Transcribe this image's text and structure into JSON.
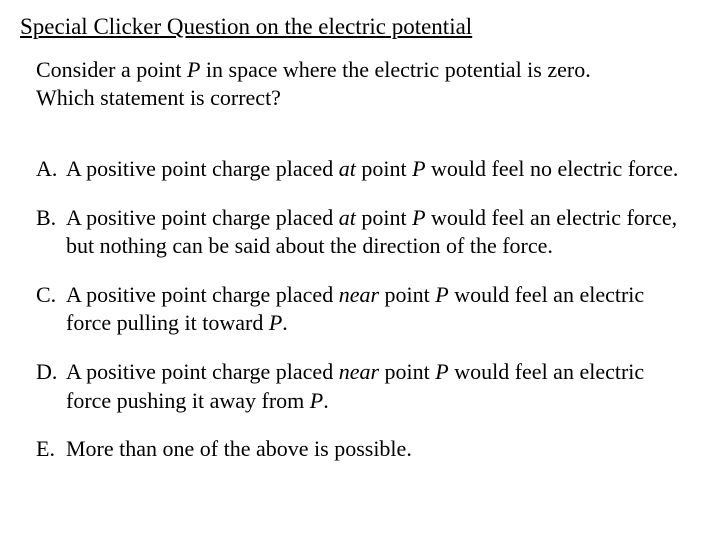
{
  "title": "Special Clicker Question on the electric potential",
  "prompt_l1": "Consider a point ",
  "prompt_P1": "P",
  "prompt_l2": " in space where the electric potential is zero.",
  "prompt_l3": "Which statement is correct?",
  "A_letter": "A.",
  "A_t1": "A positive point charge placed ",
  "A_at": "at",
  "A_t2": " point ",
  "A_P": "P",
  "A_t3": " would feel no electric force.",
  "B_letter": "B.",
  "B_t1": "A positive point charge placed ",
  "B_at": "at",
  "B_t2": " point ",
  "B_P": "P",
  "B_t3": " would feel an electric force, but nothing can be said about the direction of the force.",
  "C_letter": "C.",
  "C_t1": "A positive point charge placed ",
  "C_near": "near",
  "C_t2": " point ",
  "C_P": "P",
  "C_t3": " would feel an electric force pulling it toward ",
  "C_P2": "P",
  "C_t4": ".",
  "D_letter": "D.",
  "D_t1": "A positive point charge placed ",
  "D_near": "near",
  "D_t2": " point ",
  "D_P": "P",
  "D_t3": " would feel an electric force pushing it away from ",
  "D_P2": "P",
  "D_t4": ".",
  "E_letter": "E.",
  "E_t1": "More than one of the above is possible."
}
